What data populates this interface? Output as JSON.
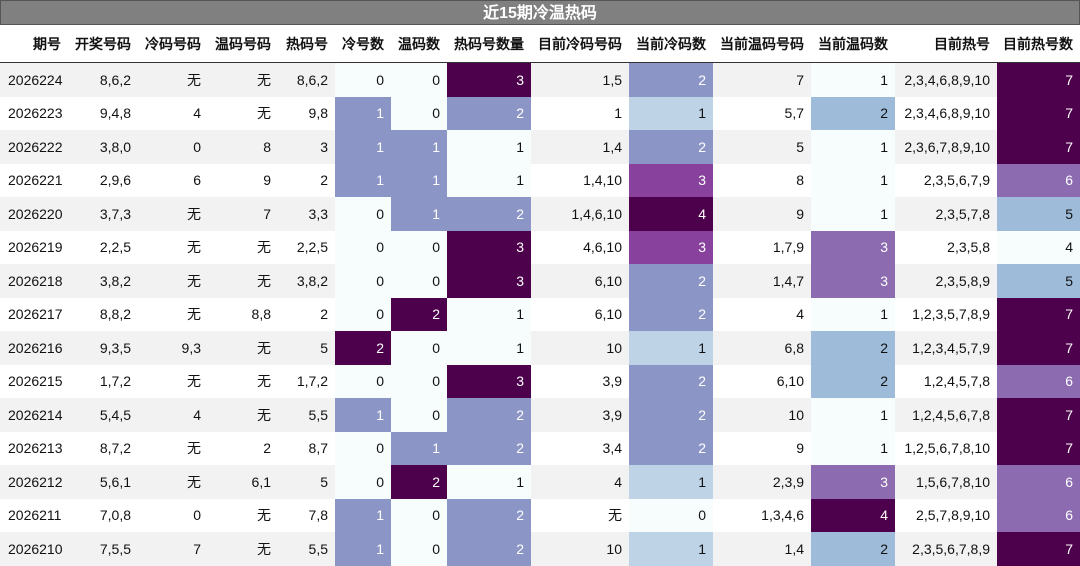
{
  "title": "近15期冷温热码",
  "table": {
    "header": [
      "期号",
      "开奖号码",
      "冷码号码",
      "温码号码",
      "热码号",
      "冷号数",
      "温码数",
      "热码号数量",
      "目前冷码号码",
      "当前冷码数",
      "当前温码号码",
      "当前温码数",
      "目前热号",
      "目前热号数"
    ],
    "rows": [
      [
        "2026224",
        "8,6,2",
        "无",
        "无",
        "8,6,2",
        "0",
        "0",
        "3",
        "1,5",
        "2",
        "7",
        "1",
        "2,3,4,6,8,9,10",
        "7"
      ],
      [
        "2026223",
        "9,4,8",
        "4",
        "无",
        "9,8",
        "1",
        "0",
        "2",
        "1",
        "1",
        "5,7",
        "2",
        "2,3,4,6,8,9,10",
        "7"
      ],
      [
        "2026222",
        "3,8,0",
        "0",
        "8",
        "3",
        "1",
        "1",
        "1",
        "1,4",
        "2",
        "5",
        "1",
        "2,3,6,7,8,9,10",
        "7"
      ],
      [
        "2026221",
        "2,9,6",
        "6",
        "9",
        "2",
        "1",
        "1",
        "1",
        "1,4,10",
        "3",
        "8",
        "1",
        "2,3,5,6,7,9",
        "6"
      ],
      [
        "2026220",
        "3,7,3",
        "无",
        "7",
        "3,3",
        "0",
        "1",
        "2",
        "1,4,6,10",
        "4",
        "9",
        "1",
        "2,3,5,7,8",
        "5"
      ],
      [
        "2026219",
        "2,2,5",
        "无",
        "无",
        "2,2,5",
        "0",
        "0",
        "3",
        "4,6,10",
        "3",
        "1,7,9",
        "3",
        "2,3,5,8",
        "4"
      ],
      [
        "2026218",
        "3,8,2",
        "无",
        "无",
        "3,8,2",
        "0",
        "0",
        "3",
        "6,10",
        "2",
        "1,4,7",
        "3",
        "2,3,5,8,9",
        "5"
      ],
      [
        "2026217",
        "8,8,2",
        "无",
        "8,8",
        "2",
        "0",
        "2",
        "1",
        "6,10",
        "2",
        "4",
        "1",
        "1,2,3,5,7,8,9",
        "7"
      ],
      [
        "2026216",
        "9,3,5",
        "9,3",
        "无",
        "5",
        "2",
        "0",
        "1",
        "10",
        "1",
        "6,8",
        "2",
        "1,2,3,4,5,7,9",
        "7"
      ],
      [
        "2026215",
        "1,7,2",
        "无",
        "无",
        "1,7,2",
        "0",
        "0",
        "3",
        "3,9",
        "2",
        "6,10",
        "2",
        "1,2,4,5,7,8",
        "6"
      ],
      [
        "2026214",
        "5,4,5",
        "4",
        "无",
        "5,5",
        "1",
        "0",
        "2",
        "3,9",
        "2",
        "10",
        "1",
        "1,2,4,5,6,7,8",
        "7"
      ],
      [
        "2026213",
        "8,7,2",
        "无",
        "2",
        "8,7",
        "0",
        "1",
        "2",
        "3,4",
        "2",
        "9",
        "1",
        "1,2,5,6,7,8,10",
        "7"
      ],
      [
        "2026212",
        "5,6,1",
        "无",
        "6,1",
        "5",
        "0",
        "2",
        "1",
        "4",
        "1",
        "2,3,9",
        "3",
        "1,5,6,7,8,10",
        "6"
      ],
      [
        "2026211",
        "7,0,8",
        "0",
        "无",
        "7,8",
        "1",
        "0",
        "2",
        "无",
        "0",
        "1,3,4,6",
        "4",
        "2,5,7,8,9,10",
        "6"
      ],
      [
        "2026210",
        "7,5,5",
        "7",
        "无",
        "5,5",
        "1",
        "0",
        "2",
        "10",
        "1",
        "1,4",
        "2",
        "2,3,5,6,7,8,9",
        "7"
      ]
    ]
  },
  "heatmap": {
    "base": "#f7fcfd",
    "columns": [
      {
        "column": 5,
        "colors": {
          "1": "#8c96c6",
          "2": "#4d004b"
        }
      },
      {
        "column": 6,
        "colors": {
          "1": "#8c96c6",
          "2": "#4d004b"
        }
      },
      {
        "column": 7,
        "colors": {
          "2": "#8c96c6",
          "3": "#4d004b"
        }
      },
      {
        "column": 9,
        "colors": {
          "1": "#bfd3e6",
          "2": "#8c96c6",
          "3": "#88419d",
          "4": "#4d004b"
        }
      },
      {
        "column": 11,
        "colors": {
          "2": "#9ebcda",
          "3": "#8c6bb1",
          "4": "#4d004b"
        }
      },
      {
        "column": 13,
        "colors": {
          "5": "#9ebcda",
          "6": "#8c6bb1",
          "7": "#4d004b"
        }
      }
    ]
  }
}
